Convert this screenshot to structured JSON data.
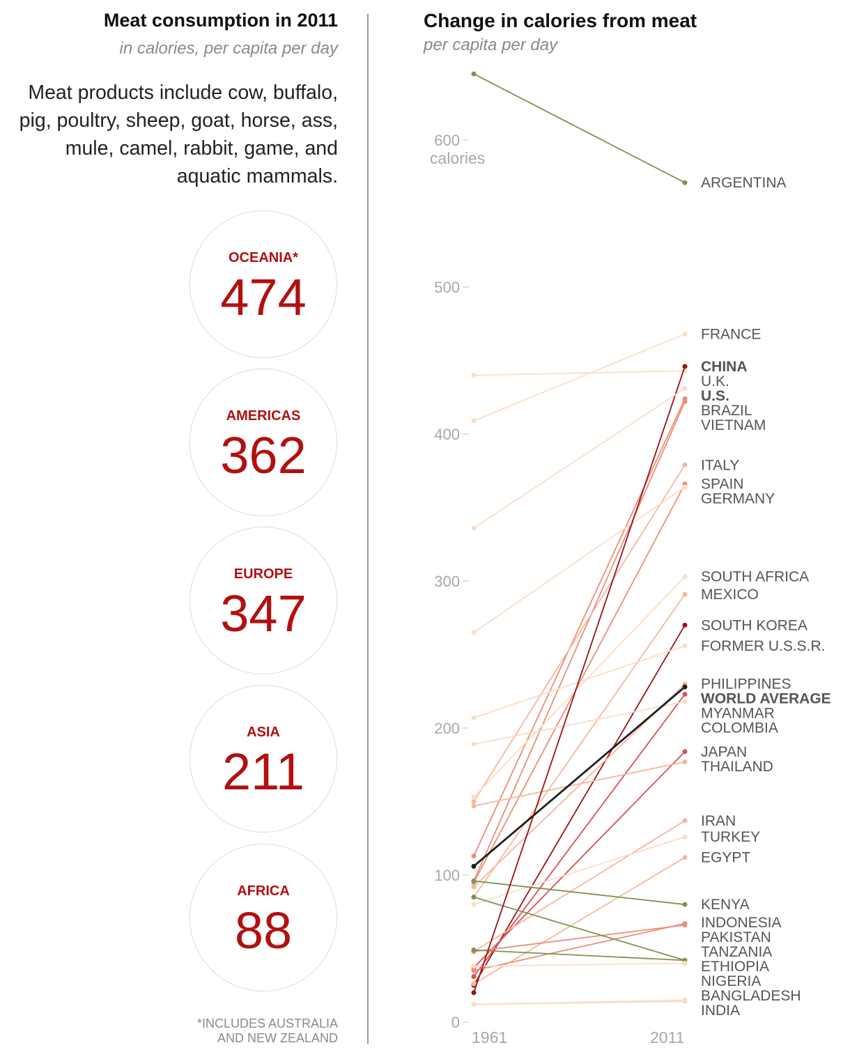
{
  "left": {
    "title": "Meat consumption in 2011",
    "subtitle": "in calories, per capita per day",
    "intro": "Meat products include cow, buffalo, pig, poultry, sheep, goat, horse, ass, mule, camel, rabbit, game, and aquatic mammals.",
    "regions": [
      {
        "name": "OCEANIA*",
        "value": "474"
      },
      {
        "name": "AMERICAS",
        "value": "362"
      },
      {
        "name": "EUROPE",
        "value": "347"
      },
      {
        "name": "ASIA",
        "value": "211"
      },
      {
        "name": "AFRICA",
        "value": "88"
      }
    ],
    "footnote_line1": "*INCLUDES AUSTRALIA",
    "footnote_line2": "AND NEW ZEALAND"
  },
  "colors": {
    "accent_red": "#b30f0f",
    "green": "#7d9450",
    "world_average": "#1e1e1e"
  },
  "chart_data": {
    "type": "line",
    "title": "Change in calories from meat",
    "subtitle": "per capita per day",
    "x": [
      "1961",
      "2011"
    ],
    "ylim": [
      0,
      650
    ],
    "yticks": [
      "0",
      "100",
      "200",
      "300",
      "400",
      "500",
      "600"
    ],
    "ylabel": "calories",
    "series": [
      {
        "name": "ARGENTINA",
        "values": [
          645,
          571
        ],
        "color": "#7d9450"
      },
      {
        "name": "FRANCE",
        "values": [
          409,
          468
        ],
        "color": "#fddcc6"
      },
      {
        "name": "CHINA",
        "values": [
          20,
          446
        ],
        "color": "#9e1014",
        "bold": true,
        "label_color": "#b30f0f"
      },
      {
        "name": "U.K.",
        "values": [
          440,
          443
        ],
        "color": "#fddcc6"
      },
      {
        "name": "U.S.",
        "values": [
          336,
          431
        ],
        "color": "#fddcc6",
        "bold": true,
        "label_color": "#111111"
      },
      {
        "name": "BRAZIL",
        "values": [
          113,
          424
        ],
        "color": "#ec8e76"
      },
      {
        "name": "VIETNAM",
        "values": [
          96,
          422
        ],
        "color": "#ec8e76"
      },
      {
        "name": "ITALY",
        "values": [
          150,
          379
        ],
        "color": "#f6b79c"
      },
      {
        "name": "SPAIN",
        "values": [
          95,
          366
        ],
        "color": "#ec8e76"
      },
      {
        "name": "GERMANY",
        "values": [
          265,
          364
        ],
        "color": "#fddcc6"
      },
      {
        "name": "SOUTH AFRICA",
        "values": [
          153,
          303
        ],
        "color": "#fddcc6"
      },
      {
        "name": "MEXICO",
        "values": [
          85,
          291
        ],
        "color": "#f6b79c"
      },
      {
        "name": "SOUTH KOREA",
        "values": [
          25,
          270
        ],
        "color": "#9e1014"
      },
      {
        "name": "FORMER U.S.S.R.",
        "values": [
          207,
          256
        ],
        "color": "#fddcc6"
      },
      {
        "name": "PHILIPPINES",
        "values": [
          92,
          230
        ],
        "color": "#f6b79c"
      },
      {
        "name": "WORLD AVERAGE",
        "values": [
          106,
          228
        ],
        "color": "#1e1e1e",
        "bold": true,
        "label_color": "#111111"
      },
      {
        "name": "MYANMAR",
        "values": [
          31,
          223
        ],
        "color": "#dc4f55"
      },
      {
        "name": "COLOMBIA",
        "values": [
          189,
          218
        ],
        "color": "#fddcc6"
      },
      {
        "name": "JAPAN",
        "values": [
          37,
          184
        ],
        "color": "#dc4f55"
      },
      {
        "name": "THAILAND",
        "values": [
          147,
          177
        ],
        "color": "#f6b79c"
      },
      {
        "name": "IRAN",
        "values": [
          48,
          137
        ],
        "color": "#f6b79c"
      },
      {
        "name": "TURKEY",
        "values": [
          80,
          126
        ],
        "color": "#fddcc6"
      },
      {
        "name": "EGYPT",
        "values": [
          26,
          112
        ],
        "color": "#f6b79c"
      },
      {
        "name": "KENYA",
        "values": [
          96,
          80
        ],
        "color": "#7d9450"
      },
      {
        "name": "INDONESIA",
        "values": [
          35,
          67
        ],
        "color": "#ec8e76"
      },
      {
        "name": "PAKISTAN",
        "values": [
          48,
          66
        ],
        "color": "#ec8e76"
      },
      {
        "name": "TANZANIA",
        "values": [
          49,
          42
        ],
        "color": "#7d9450"
      },
      {
        "name": "ETHIOPIA",
        "values": [
          85,
          42
        ],
        "color": "#7d9450"
      },
      {
        "name": "NIGERIA",
        "values": [
          38,
          40
        ],
        "color": "#fddcc6"
      },
      {
        "name": "BANGLADESH",
        "values": [
          12,
          15
        ],
        "color": "#fddcc6"
      },
      {
        "name": "INDIA",
        "values": [
          12,
          14
        ],
        "color": "#fddcc6"
      }
    ]
  }
}
